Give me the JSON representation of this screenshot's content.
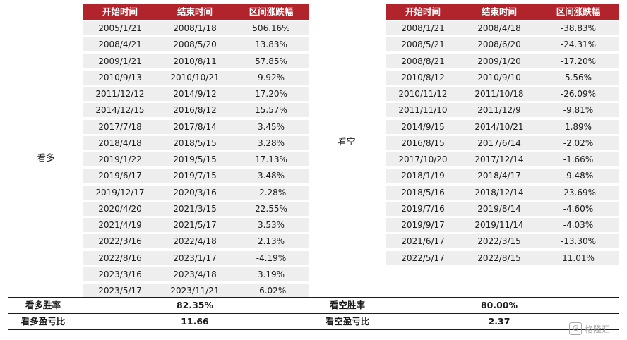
{
  "headers": {
    "start": "开始时间",
    "end": "结束时间",
    "change": "区间涨跌幅"
  },
  "bull": {
    "label": "看多",
    "rows": [
      {
        "start": "2005/1/21",
        "end": "2008/1/18",
        "change": "506.16%"
      },
      {
        "start": "2008/4/21",
        "end": "2008/5/20",
        "change": "13.83%"
      },
      {
        "start": "2009/1/21",
        "end": "2010/8/11",
        "change": "57.85%"
      },
      {
        "start": "2010/9/13",
        "end": "2010/10/21",
        "change": "9.92%"
      },
      {
        "start": "2011/12/12",
        "end": "2014/9/12",
        "change": "17.20%"
      },
      {
        "start": "2014/12/15",
        "end": "2016/8/12",
        "change": "15.57%"
      },
      {
        "start": "2017/7/18",
        "end": "2017/8/14",
        "change": "3.45%"
      },
      {
        "start": "2018/4/18",
        "end": "2018/5/15",
        "change": "3.28%"
      },
      {
        "start": "2019/1/22",
        "end": "2019/5/15",
        "change": "17.13%"
      },
      {
        "start": "2019/6/17",
        "end": "2019/7/15",
        "change": "3.48%"
      },
      {
        "start": "2019/12/17",
        "end": "2020/3/16",
        "change": "-2.28%"
      },
      {
        "start": "2020/4/20",
        "end": "2021/3/15",
        "change": "22.55%"
      },
      {
        "start": "2021/4/19",
        "end": "2021/5/17",
        "change": "3.53%"
      },
      {
        "start": "2022/3/16",
        "end": "2022/4/18",
        "change": "2.13%"
      },
      {
        "start": "2022/8/16",
        "end": "2023/1/17",
        "change": "-4.19%"
      },
      {
        "start": "2023/3/16",
        "end": "2023/4/18",
        "change": "3.19%"
      },
      {
        "start": "2023/5/17",
        "end": "2023/11/21",
        "change": "-6.02%"
      }
    ]
  },
  "bear": {
    "label": "看空",
    "rows": [
      {
        "start": "2008/1/21",
        "end": "2008/4/18",
        "change": "-38.83%"
      },
      {
        "start": "2008/5/21",
        "end": "2008/6/20",
        "change": "-24.31%"
      },
      {
        "start": "2008/8/21",
        "end": "2009/1/20",
        "change": "-17.20%"
      },
      {
        "start": "2010/8/12",
        "end": "2010/9/10",
        "change": "5.56%"
      },
      {
        "start": "2010/11/12",
        "end": "2011/10/18",
        "change": "-26.09%"
      },
      {
        "start": "2011/11/10",
        "end": "2011/12/9",
        "change": "-9.81%"
      },
      {
        "start": "2014/9/15",
        "end": "2014/10/21",
        "change": "1.89%"
      },
      {
        "start": "2016/8/15",
        "end": "2017/6/14",
        "change": "-2.02%"
      },
      {
        "start": "2017/10/20",
        "end": "2017/12/14",
        "change": "-1.66%"
      },
      {
        "start": "2018/1/19",
        "end": "2018/4/17",
        "change": "-9.48%"
      },
      {
        "start": "2018/5/16",
        "end": "2018/12/14",
        "change": "-23.69%"
      },
      {
        "start": "2019/7/16",
        "end": "2019/8/14",
        "change": "-4.60%"
      },
      {
        "start": "2019/9/17",
        "end": "2019/11/14",
        "change": "-4.03%"
      },
      {
        "start": "2021/6/17",
        "end": "2022/3/15",
        "change": "-13.30%"
      },
      {
        "start": "2022/5/17",
        "end": "2022/8/15",
        "change": "11.01%"
      }
    ]
  },
  "summary": {
    "bull_win_label": "看多胜率",
    "bull_win_value": "82.35%",
    "bull_pl_label": "看多盈亏比",
    "bull_pl_value": "11.66",
    "bear_win_label": "看空胜率",
    "bear_win_value": "80.00%",
    "bear_pl_label": "看空盈亏比",
    "bear_pl_value": "2.37"
  },
  "watermark": {
    "logo": "G",
    "text": "格隆汇"
  }
}
